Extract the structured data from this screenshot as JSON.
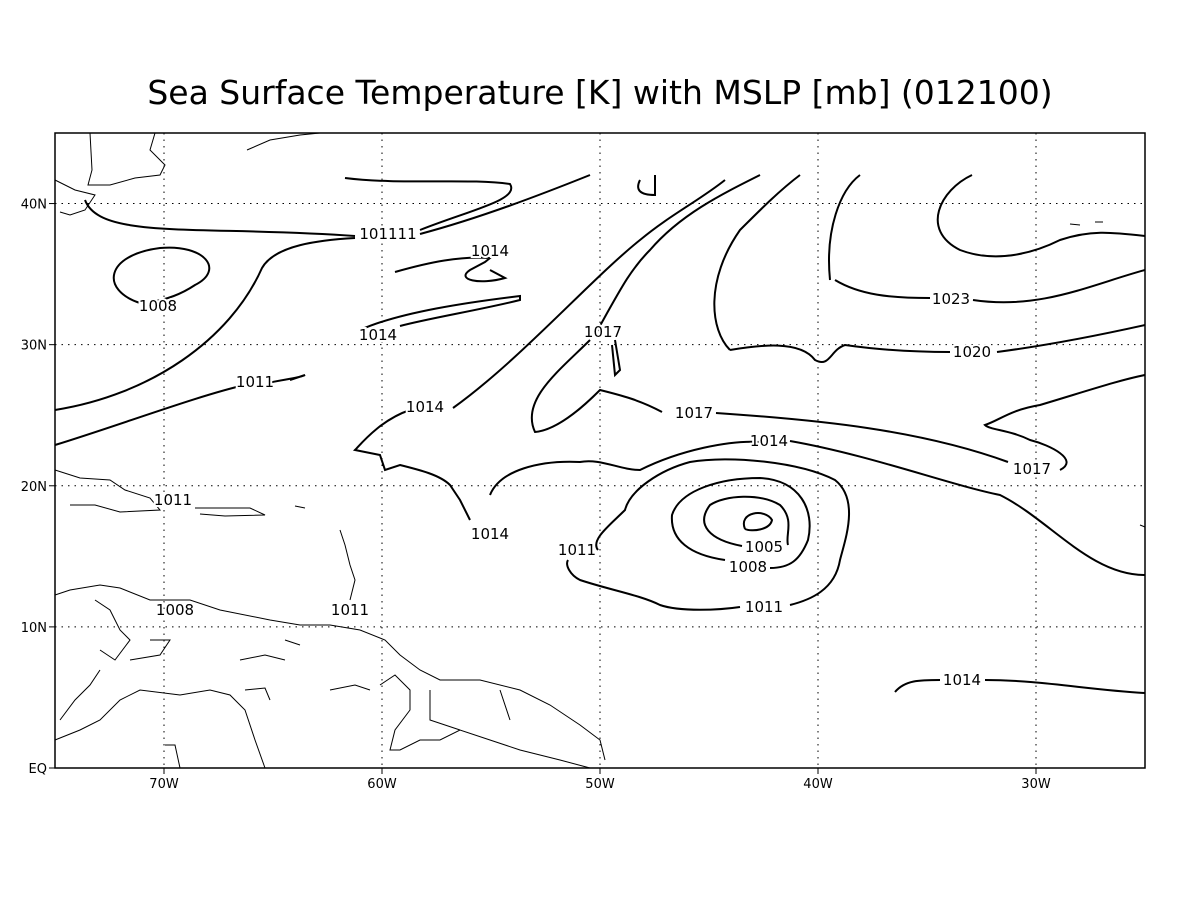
{
  "map": {
    "title": "Sea Surface Temperature [K] with MSLP [mb] (012100)",
    "lon_ticks": [
      {
        "value": -70,
        "label": "70W"
      },
      {
        "value": -60,
        "label": "60W"
      },
      {
        "value": -50,
        "label": "50W"
      },
      {
        "value": -40,
        "label": "40W"
      },
      {
        "value": -30,
        "label": "30W"
      }
    ],
    "lat_ticks": [
      {
        "value": 0,
        "label": "EQ"
      },
      {
        "value": 10,
        "label": "10N"
      },
      {
        "value": 20,
        "label": "20N"
      },
      {
        "value": 30,
        "label": "30N"
      },
      {
        "value": 40,
        "label": "40N"
      }
    ],
    "lon_range": [
      -75,
      -25
    ],
    "lat_range": [
      0,
      45
    ],
    "contour_labels": [
      "101111",
      "1014",
      "1008",
      "1014",
      "1017",
      "1023",
      "1020",
      "1011",
      "1014",
      "1017",
      "1014",
      "1017",
      "1011",
      "1014",
      "1011",
      "1005",
      "1008",
      "1011",
      "1008",
      "1011",
      "1014"
    ]
  }
}
